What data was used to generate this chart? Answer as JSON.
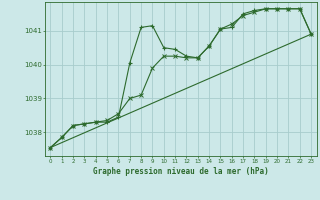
{
  "title": "Graphe pression niveau de la mer (hPa)",
  "bg_color": "#cce8e8",
  "plot_bg_color": "#cce8e8",
  "line_color": "#2d6a2d",
  "grid_color": "#a8cccc",
  "xlim": [
    -0.5,
    23.5
  ],
  "ylim": [
    1037.3,
    1041.85
  ],
  "yticks": [
    1038,
    1039,
    1040,
    1041
  ],
  "xticks": [
    0,
    1,
    2,
    3,
    4,
    5,
    6,
    7,
    8,
    9,
    10,
    11,
    12,
    13,
    14,
    15,
    16,
    17,
    18,
    19,
    20,
    21,
    22,
    23
  ],
  "series1_x": [
    0,
    1,
    2,
    3,
    4,
    5,
    6,
    7,
    8,
    9,
    10,
    11,
    12,
    13,
    14,
    15,
    16,
    17,
    18,
    19,
    20,
    21,
    22,
    23
  ],
  "series1_y": [
    1037.55,
    1037.85,
    1038.2,
    1038.25,
    1038.3,
    1038.3,
    1038.45,
    1040.05,
    1041.1,
    1041.15,
    1040.5,
    1040.45,
    1040.25,
    1040.2,
    1040.55,
    1041.05,
    1041.1,
    1041.5,
    1041.6,
    1041.65,
    1041.65,
    1041.65,
    1041.65,
    1040.9
  ],
  "series2_x": [
    0,
    1,
    2,
    3,
    4,
    5,
    6,
    7,
    8,
    9,
    10,
    11,
    12,
    13,
    14,
    15,
    16,
    17,
    18,
    19,
    20,
    21,
    22,
    23
  ],
  "series2_y": [
    1037.55,
    1037.85,
    1038.2,
    1038.25,
    1038.3,
    1038.35,
    1038.55,
    1039.0,
    1039.1,
    1039.9,
    1040.25,
    1040.25,
    1040.2,
    1040.2,
    1040.55,
    1041.05,
    1041.2,
    1041.45,
    1041.55,
    1041.65,
    1041.65,
    1041.65,
    1041.65,
    1040.9
  ],
  "series3_x": [
    0,
    23
  ],
  "series3_y": [
    1037.55,
    1040.9
  ]
}
